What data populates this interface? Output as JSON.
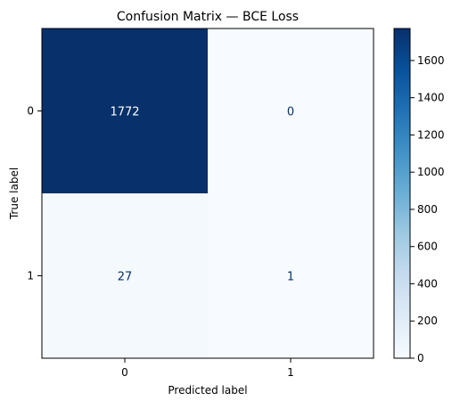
{
  "chart_data": {
    "type": "heatmap",
    "title": "Confusion Matrix — BCE Loss",
    "xlabel": "Predicted label",
    "ylabel": "True label",
    "x_categories": [
      "0",
      "1"
    ],
    "y_categories": [
      "0",
      "1"
    ],
    "values": [
      [
        1772,
        0
      ],
      [
        27,
        1
      ]
    ],
    "colormap": "Blues",
    "colorbar": {
      "range": [
        0,
        1772
      ],
      "ticks": [
        0,
        200,
        400,
        600,
        800,
        1000,
        1200,
        1400,
        1600
      ]
    },
    "colors": {
      "low": "#f7fbff",
      "high": "#08306b",
      "text_on_dark": "#ffffff",
      "text_on_light": "#08306b"
    },
    "grid": false
  }
}
